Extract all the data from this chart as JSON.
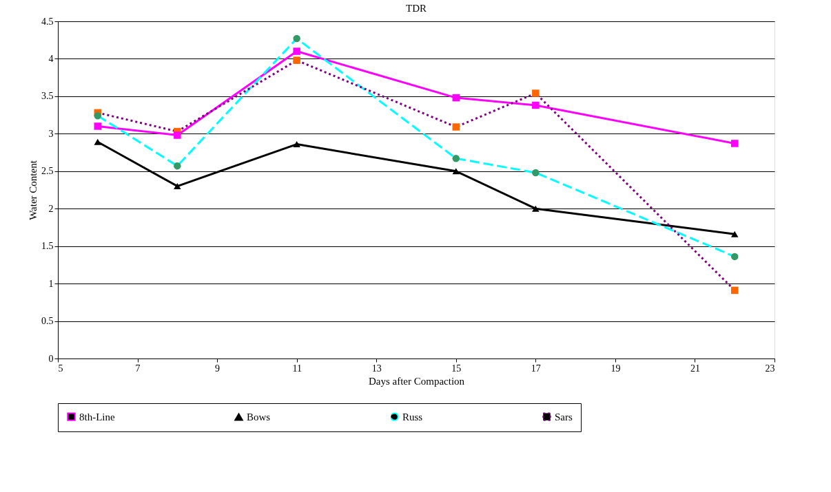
{
  "chart_data": {
    "type": "line",
    "title": "TDR",
    "xlabel": "Days after Compaction",
    "ylabel": "Water Content",
    "x": [
      6,
      8,
      11,
      15,
      17,
      22
    ],
    "series": [
      {
        "name": "8th-Line",
        "color": "#ff00ff",
        "colors": [
          "#ff00ff",
          "#ff00ff",
          "#ff00ff",
          "#ff00ff",
          "#ff00ff",
          "#ff00ff"
        ],
        "marker": "square",
        "line_style": "solid",
        "values": [
          3.1,
          2.98,
          4.1,
          3.48,
          3.38,
          2.87
        ]
      },
      {
        "name": "Bows",
        "color": "#000000",
        "colors": [
          "#000000",
          "#000000",
          "#000000",
          "#000000",
          "#000000",
          "#000000"
        ],
        "marker": "triangle",
        "line_style": "solid",
        "values": [
          2.89,
          2.3,
          2.86,
          2.5,
          2.0,
          1.66
        ]
      },
      {
        "name": "Russ",
        "color": "#00ffff",
        "colors": [
          "#339966",
          "#339966",
          "#339966",
          "#339966",
          "#339966",
          "#339966"
        ],
        "marker": "circle",
        "line_style": "dashed",
        "values": [
          3.24,
          2.57,
          4.27,
          2.67,
          2.48,
          1.36
        ]
      },
      {
        "name": "Sars",
        "color": "#800080",
        "colors": [
          "#ff6600",
          "#ff6600",
          "#ff6600",
          "#ff6600",
          "#ff6600",
          "#ff6600"
        ],
        "marker": "square",
        "line_style": "dotted",
        "values": [
          3.28,
          3.03,
          3.98,
          3.09,
          3.54,
          0.91
        ]
      }
    ],
    "xlim": [
      5,
      23
    ],
    "xticks": [
      5,
      7,
      9,
      11,
      13,
      15,
      17,
      19,
      21,
      23
    ],
    "ylim": [
      0,
      4.5
    ],
    "yticks": [
      0,
      0.5,
      1,
      1.5,
      2,
      2.5,
      3,
      3.5,
      4,
      4.5
    ],
    "grid": "y",
    "legend": "bottom"
  }
}
